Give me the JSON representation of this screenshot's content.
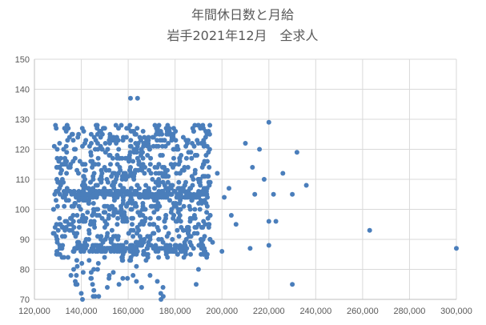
{
  "chart_data": {
    "type": "scatter",
    "title": "年間休日数と月給",
    "subtitle": "岩手2021年12月　全求人",
    "xlim": [
      120000,
      300000
    ],
    "ylim": [
      70,
      150
    ],
    "x_ticks": [
      120000,
      140000,
      160000,
      180000,
      200000,
      220000,
      240000,
      260000,
      280000,
      300000
    ],
    "x_tick_labels": [
      "120,000",
      "140,000",
      "160,000",
      "180,000",
      "200,000",
      "220,000",
      "240,000",
      "260,000",
      "280,000",
      "300,000"
    ],
    "y_ticks": [
      70,
      80,
      90,
      100,
      110,
      120,
      130,
      140,
      150
    ],
    "y_tick_labels": [
      "70",
      "80",
      "90",
      "100",
      "110",
      "120",
      "130",
      "140",
      "150"
    ],
    "grid": true,
    "marker_color": "#4a7ebb",
    "outliers": [
      [
        161000,
        137
      ],
      [
        164000,
        137
      ],
      [
        220000,
        129
      ],
      [
        216000,
        120
      ],
      [
        232000,
        119
      ],
      [
        210000,
        122
      ],
      [
        226000,
        112
      ],
      [
        218000,
        110
      ],
      [
        213000,
        114
      ],
      [
        236000,
        108
      ],
      [
        230000,
        105
      ],
      [
        222000,
        105
      ],
      [
        214000,
        105
      ],
      [
        220000,
        96
      ],
      [
        223000,
        96
      ],
      [
        204000,
        98
      ],
      [
        206000,
        95
      ],
      [
        220000,
        88
      ],
      [
        212000,
        87
      ],
      [
        263000,
        93
      ],
      [
        300000,
        87
      ],
      [
        230000,
        75
      ],
      [
        189000,
        75
      ],
      [
        174000,
        70
      ],
      [
        190000,
        80
      ],
      [
        203000,
        107
      ],
      [
        198000,
        112
      ],
      [
        201000,
        104
      ],
      [
        196000,
        89
      ],
      [
        200000,
        86
      ],
      [
        191000,
        90
      ],
      [
        186000,
        91
      ]
    ],
    "clusters": [
      {
        "x_range": [
          128000,
          195000
        ],
        "y_range": [
          84,
          128
        ],
        "count": 900,
        "seed": 11
      },
      {
        "x_range": [
          135000,
          175000
        ],
        "y_range": [
          70,
          84
        ],
        "count": 45,
        "seed": 23
      },
      {
        "x_range": [
          136000,
          195000
        ],
        "y_range": [
          104,
          106
        ],
        "count": 160,
        "seed": 37
      },
      {
        "x_range": [
          136000,
          185000
        ],
        "y_range": [
          86,
          88
        ],
        "count": 90,
        "seed": 41
      }
    ]
  }
}
